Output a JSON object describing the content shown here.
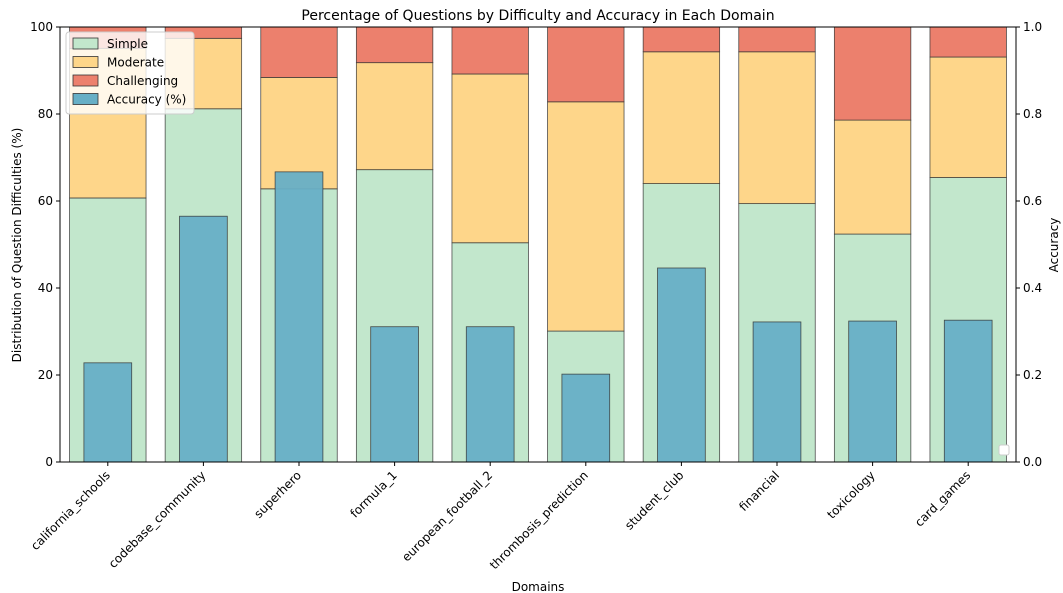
{
  "chart_data": {
    "type": "bar",
    "title": "Percentage of Questions by Difficulty and Accuracy in Each Domain",
    "xlabel": "Domains",
    "ylabel": "Distribution of Question Difficulties (%)",
    "ylabel_right": "Accuracy",
    "ylim": [
      0,
      100
    ],
    "ylim_right": [
      0,
      1.0
    ],
    "yticks": [
      "0",
      "20",
      "40",
      "60",
      "80",
      "100"
    ],
    "yticks_right": [
      "0.0",
      "0.2",
      "0.4",
      "0.6",
      "0.8",
      "1.0"
    ],
    "legend_position": "top-left",
    "categories": [
      "california_schools",
      "codebase_community",
      "superhero",
      "formula_1",
      "european_football_2",
      "thrombosis_prediction",
      "student_club",
      "financial",
      "toxicology",
      "card_games"
    ],
    "series": [
      {
        "name": "Simple",
        "color": "#c2e7cc",
        "values": [
          60.7,
          81.2,
          62.8,
          67.2,
          50.4,
          30.1,
          64.0,
          59.4,
          52.4,
          65.4
        ]
      },
      {
        "name": "Moderate",
        "color": "#fed68a",
        "values": [
          34.4,
          16.2,
          25.6,
          24.6,
          38.8,
          52.7,
          30.3,
          34.9,
          26.2,
          27.7
        ]
      },
      {
        "name": "Challenging",
        "color": "#ec806d",
        "values": [
          4.9,
          2.6,
          11.6,
          8.2,
          10.8,
          17.2,
          5.7,
          5.7,
          21.4,
          6.9
        ]
      }
    ],
    "accuracy": {
      "name": "Accuracy (%)",
      "color": "#67afc6",
      "values": [
        0.228,
        0.565,
        0.667,
        0.311,
        0.311,
        0.202,
        0.446,
        0.322,
        0.324,
        0.326
      ]
    }
  }
}
